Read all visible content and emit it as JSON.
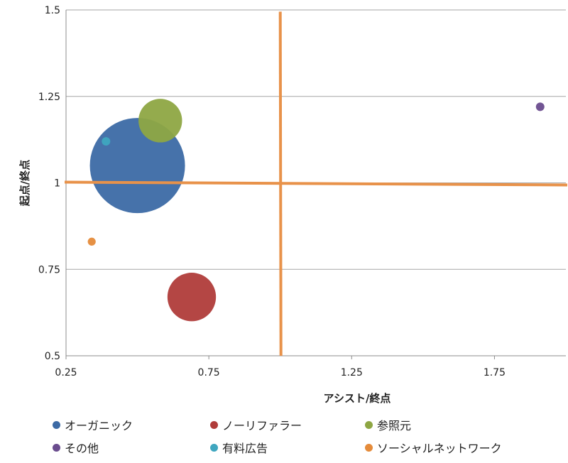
{
  "chart_data": {
    "type": "scatter",
    "title": "",
    "xlabel": "アシスト/終点",
    "ylabel": "起点/終点",
    "xlim": [
      0.25,
      2.0
    ],
    "ylim": [
      0.5,
      1.5
    ],
    "x_ticks": [
      "0.25",
      "0.75",
      "1.25",
      "1.75"
    ],
    "y_ticks": [
      "0.5",
      "0.75",
      "1",
      "1.25",
      "1.5"
    ],
    "grid": "horizontal",
    "legend_position": "bottom",
    "bubble": true,
    "series": [
      {
        "name": "オーガニック",
        "color": "#3c6aa5",
        "x": 0.5,
        "y": 1.05,
        "size": 100
      },
      {
        "name": "ノーリファラー",
        "color": "#b03c3a",
        "x": 0.69,
        "y": 0.67,
        "size": 26
      },
      {
        "name": "参照元",
        "color": "#8ea643",
        "x": 0.58,
        "y": 1.18,
        "size": 21
      },
      {
        "name": "その他",
        "color": "#6a4c8e",
        "x": 1.91,
        "y": 1.22,
        "size": 0.8
      },
      {
        "name": "有料広告",
        "color": "#3fa6bf",
        "x": 0.39,
        "y": 1.12,
        "size": 0.8
      },
      {
        "name": "ソーシャルネットワーク",
        "color": "#e58b3a",
        "x": 0.34,
        "y": 0.83,
        "size": 0.7
      }
    ],
    "reference_lines": {
      "color": "#e8924a",
      "vertical_x": 1.0,
      "horizontal_y": 1.0
    }
  }
}
